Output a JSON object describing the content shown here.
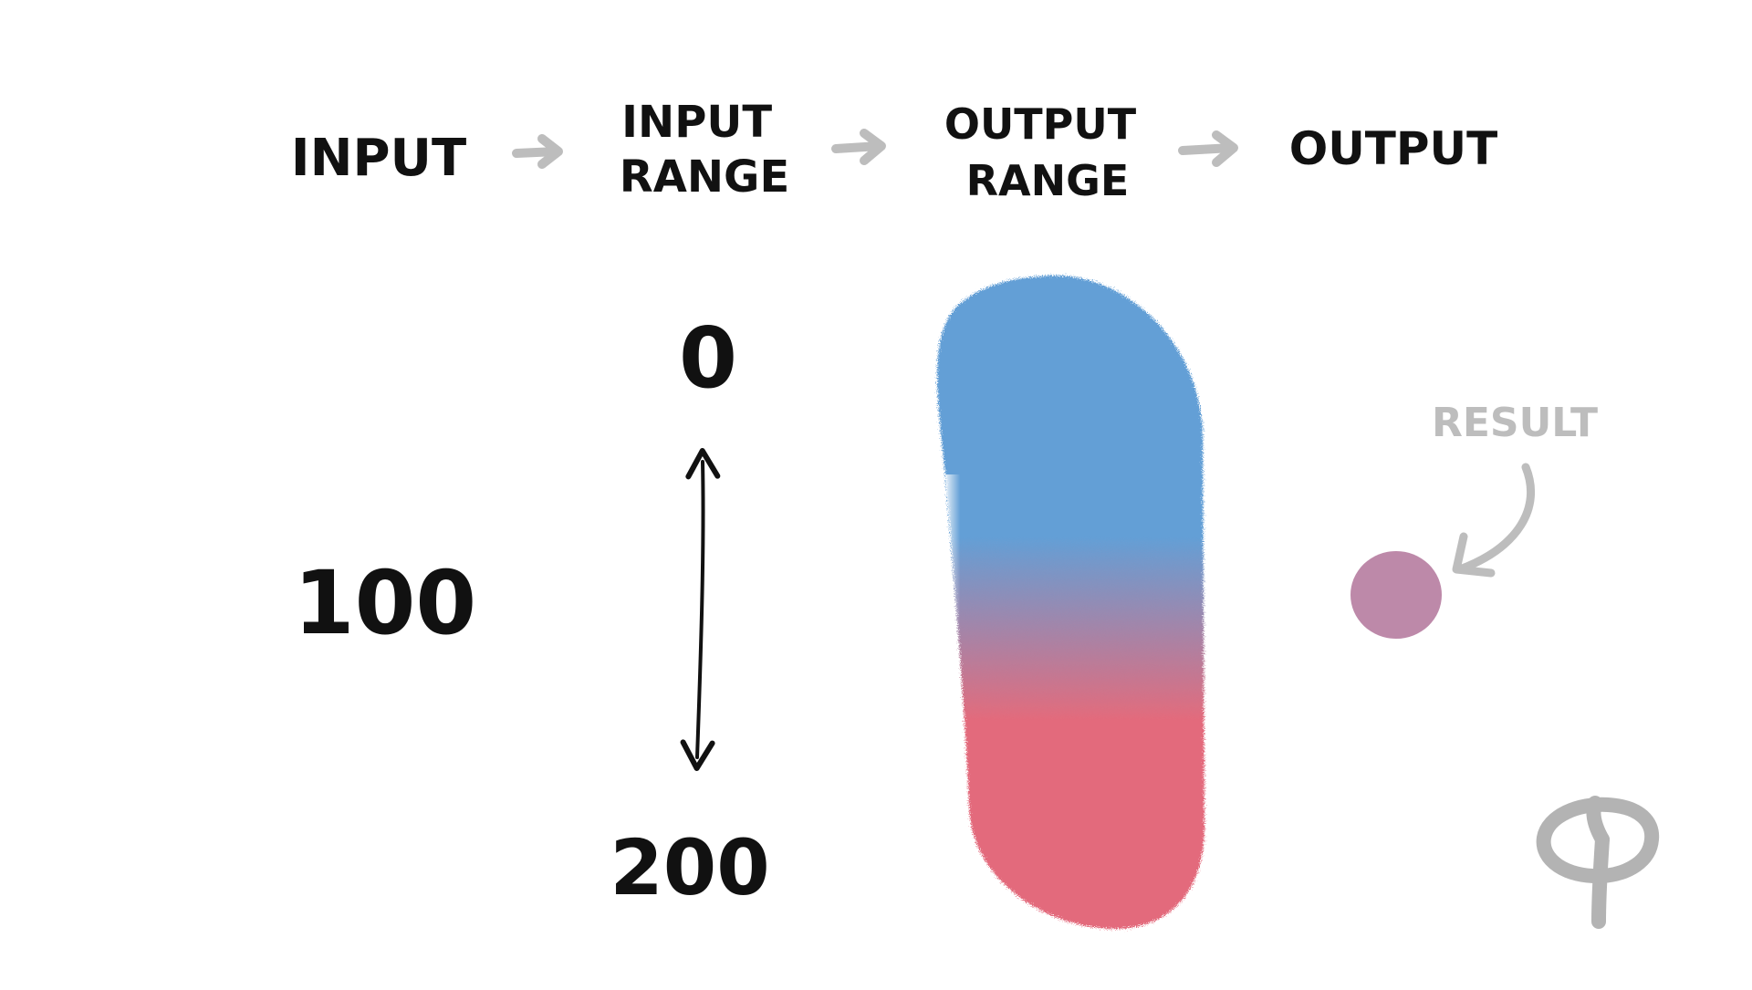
{
  "header": {
    "steps": [
      {
        "lines": [
          "INPUT"
        ]
      },
      {
        "lines": [
          "INPUT",
          "RANGE"
        ]
      },
      {
        "lines": [
          "OUTPUT",
          "RANGE"
        ]
      },
      {
        "lines": [
          "OUTPUT"
        ]
      }
    ]
  },
  "input": {
    "value": "100"
  },
  "input_range": {
    "min": "0",
    "max": "200"
  },
  "output_range": {
    "start_color": "#639FD6",
    "end_color": "#E36B7C"
  },
  "output": {
    "label": "RESULT",
    "color": "#BD89A9"
  },
  "colors": {
    "ink": "#111111",
    "arrow": "#BDBDBD",
    "result_label": "#BDBDBD",
    "logo": "#B3B3B3"
  },
  "icons": {
    "logo": "p-logo-icon"
  }
}
